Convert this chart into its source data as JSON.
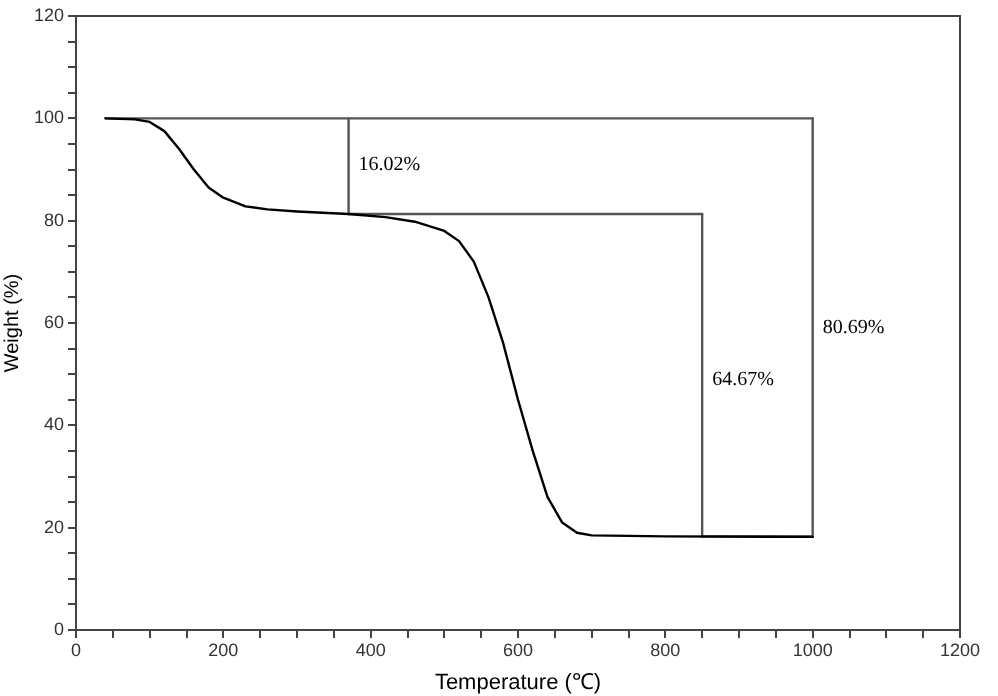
{
  "chart_data": {
    "type": "line",
    "xlabel": "Temperature (℃)",
    "ylabel": "Weight (%)",
    "xlim": [
      0,
      1200
    ],
    "ylim": [
      0,
      120
    ],
    "xticks": [
      0,
      {
        "value": 50,
        "label": null
      },
      {
        "value": 100,
        "label": null
      },
      {
        "value": 150,
        "label": null
      },
      200,
      {
        "value": 250,
        "label": null
      },
      {
        "value": 300,
        "label": null
      },
      {
        "value": 350,
        "label": null
      },
      400,
      {
        "value": 450,
        "label": null
      },
      {
        "value": 500,
        "label": null
      },
      {
        "value": 550,
        "label": null
      },
      600,
      {
        "value": 650,
        "label": null
      },
      {
        "value": 700,
        "label": null
      },
      {
        "value": 750,
        "label": null
      },
      800,
      {
        "value": 850,
        "label": null
      },
      {
        "value": 900,
        "label": null
      },
      {
        "value": 950,
        "label": null
      },
      1000,
      {
        "value": 1050,
        "label": null
      },
      {
        "value": 1100,
        "label": null
      },
      {
        "value": 1150,
        "label": null
      },
      1200
    ],
    "yticks": [
      0,
      {
        "value": 5,
        "label": null
      },
      {
        "value": 10,
        "label": null
      },
      {
        "value": 15,
        "label": null
      },
      20,
      {
        "value": 25,
        "label": null
      },
      {
        "value": 30,
        "label": null
      },
      {
        "value": 35,
        "label": null
      },
      40,
      {
        "value": 45,
        "label": null
      },
      {
        "value": 50,
        "label": null
      },
      {
        "value": 55,
        "label": null
      },
      60,
      {
        "value": 65,
        "label": null
      },
      {
        "value": 70,
        "label": null
      },
      {
        "value": 75,
        "label": null
      },
      80,
      {
        "value": 85,
        "label": null
      },
      {
        "value": 90,
        "label": null
      },
      {
        "value": 95,
        "label": null
      },
      100,
      {
        "value": 105,
        "label": null
      },
      {
        "value": 110,
        "label": null
      },
      {
        "value": 115,
        "label": null
      },
      120
    ],
    "grid": false,
    "legend": false,
    "marker": "none",
    "line_style": "solid",
    "series": [
      {
        "color": "#000000",
        "x": [
          40,
          80,
          100,
          120,
          140,
          160,
          180,
          200,
          230,
          260,
          300,
          370,
          420,
          460,
          500,
          520,
          540,
          560,
          580,
          600,
          620,
          640,
          660,
          680,
          700,
          800,
          1000
        ],
        "values": [
          100,
          99.8,
          99.3,
          97.5,
          94,
          90,
          86.5,
          84.5,
          82.8,
          82.2,
          81.8,
          81.3,
          80.7,
          79.8,
          78,
          76,
          72,
          65,
          56,
          45,
          35,
          26,
          21,
          19,
          18.5,
          18.3,
          18.2
        ]
      },
      {
        "color": "#555555",
        "x": [
          40,
          1000
        ],
        "values": [
          100,
          100
        ]
      },
      {
        "color": "#555555",
        "x": [
          370,
          850
        ],
        "values": [
          81.3,
          81.3
        ]
      },
      {
        "color": "#555555",
        "x": [
          850,
          1000
        ],
        "values": [
          18.3,
          18.3
        ]
      },
      {
        "color": "#555555",
        "x": [
          370,
          370
        ],
        "values": [
          100,
          81.3
        ]
      },
      {
        "color": "#555555",
        "x": [
          850,
          850
        ],
        "values": [
          81.3,
          18.3
        ]
      },
      {
        "color": "#555555",
        "x": [
          1000,
          1000
        ],
        "values": [
          100,
          18.3
        ]
      }
    ],
    "annotations": [
      {
        "text": "16.02%",
        "x": 370,
        "y": 91
      },
      {
        "text": "64.67%",
        "x": 850,
        "y": 49
      },
      {
        "text": "80.69%",
        "x": 1000,
        "y": 59
      }
    ]
  }
}
